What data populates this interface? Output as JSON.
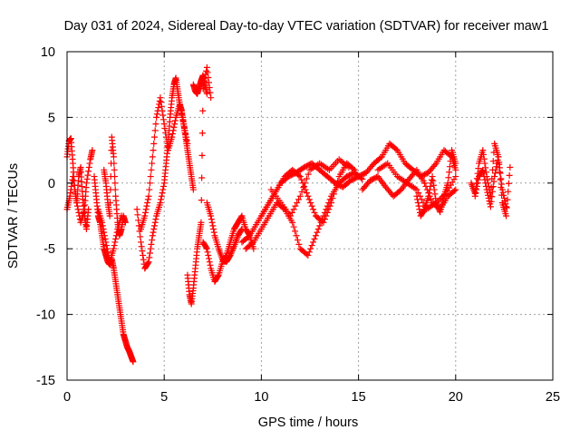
{
  "chart_data": {
    "type": "scatter",
    "title": "Day 031 of 2024, Sidereal Day-to-day VTEC variation (SDTVAR) for receiver maw1",
    "xlabel": "GPS time / hours",
    "ylabel": "SDTVAR / TECUs",
    "xlim": [
      0,
      25
    ],
    "ylim": [
      -15,
      10
    ],
    "xticks": [
      0,
      5,
      10,
      15,
      20,
      25
    ],
    "yticks": [
      -15,
      -10,
      -5,
      0,
      5,
      10
    ],
    "x_tick_labels": [
      "0",
      "5",
      "10",
      "15",
      "20",
      "25"
    ],
    "y_tick_labels": [
      "-15",
      "-10",
      "-5",
      "0",
      "5",
      "10"
    ],
    "grid": true,
    "marker": "+",
    "series": [
      {
        "name": "SDTVAR",
        "color": "#ff0000",
        "tracks": [
          {
            "x": [
              0.0,
              0.1,
              0.2,
              0.3,
              0.4,
              0.5,
              0.6,
              0.7,
              0.8,
              0.9,
              1.0,
              1.1
            ],
            "y": [
              2.0,
              3.2,
              3.4,
              1.5,
              -0.5,
              -1.5,
              0.5,
              1.2,
              -1.0,
              -2.5,
              -3.5,
              -2.0
            ]
          },
          {
            "x": [
              0.0,
              0.15,
              0.3,
              0.5,
              0.7,
              0.9,
              1.0,
              1.2,
              1.3
            ],
            "y": [
              -2.0,
              -1.0,
              0.5,
              -1.5,
              -3.0,
              -2.0,
              0.0,
              1.8,
              2.5
            ]
          },
          {
            "x": [
              1.4,
              1.5,
              1.6,
              1.7,
              1.8,
              1.9,
              2.0,
              2.1,
              2.2,
              2.3,
              2.4,
              2.5,
              2.6,
              2.7,
              2.8,
              2.9,
              3.0,
              3.1,
              3.2,
              3.3,
              3.4
            ],
            "y": [
              0.5,
              -1.0,
              -2.5,
              -3.0,
              -4.0,
              -5.0,
              -5.5,
              -6.0,
              -6.2,
              -5.8,
              -6.5,
              -7.5,
              -8.5,
              -9.5,
              -10.5,
              -11.5,
              -12.0,
              -12.5,
              -12.8,
              -13.2,
              -13.6
            ]
          },
          {
            "x": [
              1.9,
              2.0,
              2.1,
              2.2,
              2.3,
              2.4,
              2.5,
              2.6,
              2.7,
              2.8,
              2.9,
              3.0
            ],
            "y": [
              1.0,
              0.0,
              -1.5,
              -2.5,
              3.5,
              2.0,
              -1.0,
              -3.0,
              -4.0,
              -3.5,
              -2.5,
              -3.0
            ]
          },
          {
            "x": [
              1.6,
              1.8,
              2.0,
              2.2,
              2.4,
              2.6,
              2.8
            ],
            "y": [
              -2.0,
              -3.0,
              -4.5,
              -6.0,
              -5.0,
              -3.5,
              -2.5
            ]
          },
          {
            "x": [
              3.6,
              3.8,
              4.0,
              4.2,
              4.4,
              4.6,
              4.8,
              5.0,
              5.1,
              5.2,
              5.3,
              5.4,
              5.5,
              5.6,
              5.7,
              5.8,
              5.9,
              6.0,
              6.1,
              6.2,
              6.3,
              6.4,
              6.5
            ],
            "y": [
              -2.0,
              -4.5,
              -6.5,
              -6.0,
              -4.0,
              -2.5,
              -1.5,
              0.0,
              1.5,
              3.0,
              5.0,
              6.5,
              7.5,
              8.0,
              7.0,
              6.0,
              5.5,
              4.5,
              3.5,
              2.5,
              1.5,
              0.5,
              -0.5
            ]
          },
          {
            "x": [
              3.8,
              4.0,
              4.2,
              4.4,
              4.6,
              4.8,
              5.0,
              5.2,
              5.4,
              5.6,
              5.8,
              6.0,
              6.2
            ],
            "y": [
              -3.5,
              -2.5,
              -1.0,
              2.0,
              5.0,
              6.5,
              4.5,
              2.5,
              3.5,
              5.0,
              6.0,
              4.5,
              3.0
            ]
          },
          {
            "x": [
              6.2,
              6.3,
              6.4,
              6.5,
              6.6,
              6.7,
              6.8,
              6.9,
              7.0,
              7.2,
              7.4
            ],
            "y": [
              -7.0,
              -8.5,
              -9.2,
              -8.0,
              -6.5,
              -5.0,
              -4.0,
              -3.0,
              7.2,
              8.8,
              6.5
            ]
          },
          {
            "x": [
              6.5,
              6.6,
              6.7,
              6.8,
              6.9,
              7.0,
              7.1,
              7.2
            ],
            "y": [
              7.5,
              7.0,
              6.8,
              7.3,
              7.8,
              8.2,
              7.5,
              6.8
            ]
          },
          {
            "x": [
              7.0,
              7.2,
              7.4,
              7.6,
              7.8,
              8.0,
              8.2,
              8.4,
              8.6,
              8.8,
              9.0,
              9.2,
              9.4,
              9.6
            ],
            "y": [
              -4.5,
              -5.0,
              -6.5,
              -7.5,
              -7.0,
              -6.0,
              -5.5,
              -4.5,
              -3.5,
              -3.0,
              -2.5,
              -3.5,
              -4.0,
              -5.0
            ]
          },
          {
            "x": [
              7.2,
              7.4,
              7.6,
              7.8,
              8.0,
              8.2,
              8.4,
              8.6,
              8.8,
              9.0
            ],
            "y": [
              -1.5,
              -2.5,
              -4.0,
              -5.0,
              -5.8,
              -6.0,
              -5.5,
              -4.8,
              -4.0,
              -3.5
            ]
          },
          {
            "x": [
              9.0,
              9.4,
              9.8,
              10.2,
              10.6,
              11.0,
              11.4,
              11.8,
              12.2,
              12.6,
              13.0,
              13.4,
              13.8,
              14.2,
              14.6,
              15.0
            ],
            "y": [
              -4.5,
              -4.0,
              -3.0,
              -2.0,
              -1.0,
              0.0,
              0.5,
              0.8,
              1.2,
              1.5,
              1.0,
              0.5,
              0.0,
              -0.3,
              0.2,
              0.5
            ]
          },
          {
            "x": [
              9.2,
              9.6,
              10.0,
              10.4,
              10.8,
              11.2,
              11.6,
              12.0,
              12.4,
              12.8,
              13.2,
              13.6,
              14.0,
              14.4,
              14.8,
              15.2
            ],
            "y": [
              -5.0,
              -4.5,
              -3.5,
              -2.5,
              -1.5,
              -2.0,
              -3.0,
              -5.0,
              -5.5,
              -4.0,
              -2.5,
              -1.0,
              0.0,
              0.5,
              0.8,
              0.3
            ]
          },
          {
            "x": [
              10.0,
              10.4,
              10.8,
              11.2,
              11.6,
              12.0,
              12.4,
              12.8,
              13.2,
              13.6,
              14.0,
              14.4,
              14.8
            ],
            "y": [
              -2.5,
              -1.5,
              -0.5,
              0.5,
              1.0,
              0.5,
              -1.0,
              -2.5,
              -3.0,
              -1.5,
              0.5,
              1.5,
              1.0
            ]
          },
          {
            "x": [
              10.5,
              11.0,
              11.5,
              12.0,
              12.5,
              13.0,
              13.5,
              14.0,
              14.5
            ],
            "y": [
              -0.5,
              -1.5,
              -2.5,
              -1.0,
              1.0,
              1.5,
              1.0,
              1.8,
              1.2
            ]
          },
          {
            "x": [
              15.0,
              15.4,
              15.8,
              16.2,
              16.6,
              17.0,
              17.4,
              17.8,
              18.2,
              18.6,
              19.0,
              19.4,
              19.8,
              20.0
            ],
            "y": [
              0.5,
              0.8,
              1.5,
              2.0,
              3.0,
              2.5,
              1.5,
              1.0,
              0.5,
              0.8,
              1.5,
              2.5,
              2.0,
              1.0
            ]
          },
          {
            "x": [
              15.2,
              15.6,
              16.0,
              16.4,
              16.8,
              17.2,
              17.6,
              18.0,
              18.4,
              18.8,
              19.2,
              19.6,
              20.0
            ],
            "y": [
              -0.5,
              0.2,
              0.5,
              -0.3,
              -1.0,
              -0.5,
              0.3,
              1.0,
              0.0,
              -1.5,
              -2.0,
              -1.0,
              -0.5
            ]
          },
          {
            "x": [
              16.0,
              16.5,
              17.0,
              17.5,
              18.0,
              18.5,
              19.0,
              19.5,
              20.0
            ],
            "y": [
              1.0,
              1.5,
              0.5,
              0.0,
              -0.5,
              -2.0,
              -1.5,
              -0.8,
              0.5
            ]
          },
          {
            "x": [
              18.0,
              18.2,
              18.4,
              18.6,
              18.8,
              19.0,
              19.2,
              19.4,
              19.6,
              19.8,
              20.0
            ],
            "y": [
              -1.0,
              -2.5,
              -2.0,
              -1.0,
              0.5,
              -1.5,
              -2.2,
              -1.0,
              0.0,
              2.5,
              1.5
            ]
          },
          {
            "x": [
              20.8,
              21.0,
              21.2,
              21.4,
              21.6,
              21.8,
              22.0,
              22.2,
              22.4,
              22.6,
              22.8
            ],
            "y": [
              0.0,
              -0.8,
              1.5,
              2.5,
              0.5,
              -1.0,
              3.0,
              2.0,
              -1.5,
              -2.5,
              1.2
            ]
          },
          {
            "x": [
              21.0,
              21.2,
              21.4,
              21.6,
              21.8,
              22.0,
              22.2,
              22.4,
              22.6
            ],
            "y": [
              -1.0,
              0.5,
              1.0,
              -0.5,
              -1.8,
              0.5,
              2.0,
              -0.5,
              -1.8
            ]
          }
        ]
      }
    ]
  }
}
